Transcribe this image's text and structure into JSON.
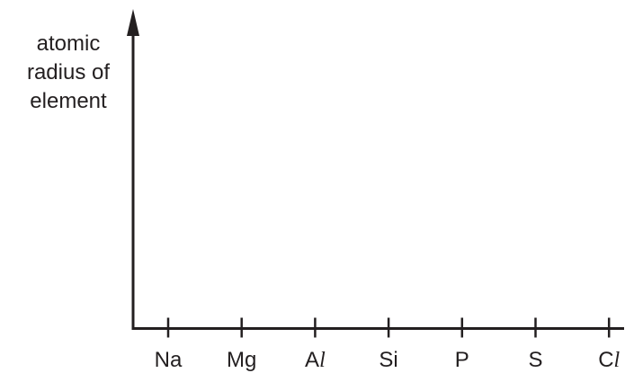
{
  "chart_data": {
    "type": "line",
    "title": "",
    "xlabel": "",
    "ylabel": "atomic radius of element",
    "ylabel_lines": [
      "atomic",
      "radius of",
      "element"
    ],
    "categories": [
      "Na",
      "Mg",
      "Al",
      "Si",
      "P",
      "S",
      "Cl"
    ],
    "category_display": [
      {
        "main": "Na",
        "italic": ""
      },
      {
        "main": "Mg",
        "italic": ""
      },
      {
        "main": "A",
        "italic": "l"
      },
      {
        "main": "Si",
        "italic": ""
      },
      {
        "main": "P",
        "italic": ""
      },
      {
        "main": "S",
        "italic": ""
      },
      {
        "main": "C",
        "italic": "l"
      }
    ],
    "series": [],
    "grid": false,
    "legend": "none"
  }
}
